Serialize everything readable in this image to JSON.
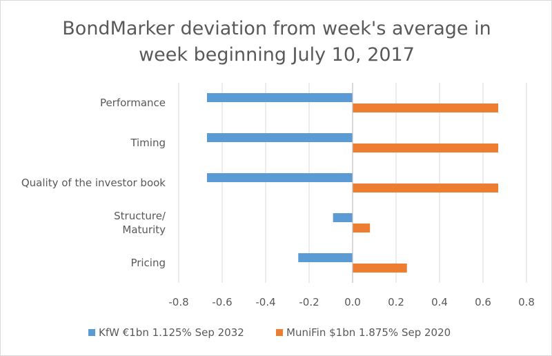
{
  "chart_data": {
    "type": "bar",
    "orientation": "horizontal",
    "title_lines": [
      "BondMarker deviation from week's average in",
      "week beginning July 10, 2017"
    ],
    "categories": [
      [
        "Performance"
      ],
      [
        "Timing"
      ],
      [
        "Quality of the investor book"
      ],
      [
        "Structure/",
        "Maturity"
      ],
      [
        "Pricing"
      ]
    ],
    "series": [
      {
        "name": "KfW €1bn 1.125% Sep 2032",
        "color": "#5b9bd5",
        "values": [
          -0.67,
          -0.67,
          -0.67,
          -0.09,
          -0.25
        ]
      },
      {
        "name": "MuniFin $1bn 1.875% Sep 2020",
        "color": "#ed7d31",
        "values": [
          0.67,
          0.67,
          0.67,
          0.08,
          0.25
        ]
      }
    ],
    "xlim": [
      -0.8,
      0.8
    ],
    "xticks": [
      "-0.8",
      "-0.6",
      "-0.4",
      "-0.2",
      "0.0",
      "0.2",
      "0.4",
      "0.6",
      "0.8"
    ],
    "xtick_values": [
      -0.8,
      -0.6,
      -0.4,
      -0.2,
      0.0,
      0.2,
      0.4,
      0.6,
      0.8
    ],
    "grid": "vertical",
    "legend_position": "bottom"
  }
}
